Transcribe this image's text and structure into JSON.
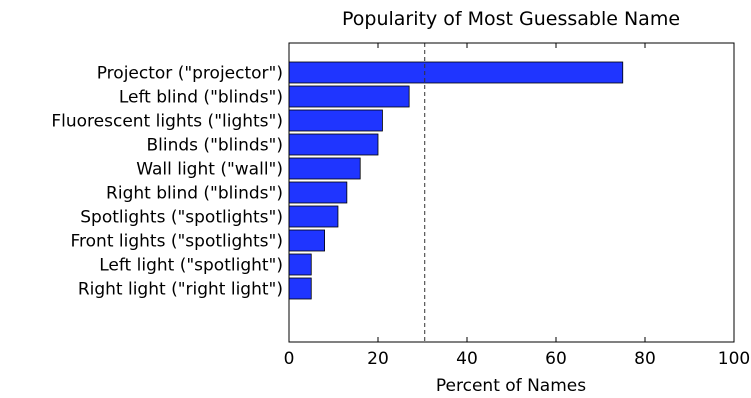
{
  "chart_data": {
    "type": "bar",
    "orientation": "horizontal",
    "title": "Popularity of Most Guessable Name",
    "xlabel": "Percent of Names",
    "ylabel": "",
    "xlim": [
      0,
      100
    ],
    "xticks": [
      0,
      20,
      40,
      60,
      80,
      100
    ],
    "grid": false,
    "bar_color": "#1f35ff",
    "reference_line": {
      "x": 30.5,
      "style": "dashed"
    },
    "categories": [
      "Projector (\"projector\")",
      "Left blind (\"blinds\")",
      "Fluorescent lights (\"lights\")",
      "Blinds (\"blinds\")",
      "Wall light (\"wall\")",
      "Right blind (\"blinds\")",
      "Spotlights (\"spotlights\")",
      "Front lights (\"spotlights\")",
      "Left light (\"spotlight\")",
      "Right light (\"right light\")"
    ],
    "values": [
      75,
      27,
      21,
      20,
      16,
      13,
      11,
      8,
      5,
      5
    ]
  }
}
